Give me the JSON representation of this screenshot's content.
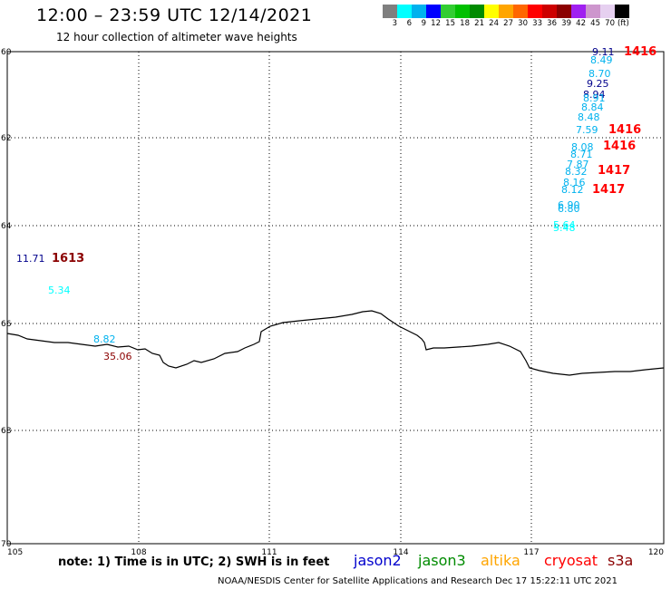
{
  "header": {
    "title": "12:00 – 23:59 UTC 12/14/2021",
    "subtitle": "12 hour collection of altimeter wave heights"
  },
  "colorbar": {
    "colors": [
      "#7f7f7f",
      "#00ffff",
      "#00b2ee",
      "#0000ff",
      "#32cd32",
      "#00c000",
      "#008b00",
      "#ffff00",
      "#ffa500",
      "#ff6600",
      "#ff0000",
      "#cd0000",
      "#8b0000",
      "#a020f0",
      "#cd96cd",
      "#e6d0f0",
      "#000000"
    ],
    "labels": [
      "3",
      "6",
      "9",
      "12",
      "15",
      "18",
      "21",
      "24",
      "27",
      "30",
      "33",
      "36",
      "39",
      "42",
      "45",
      "70"
    ],
    "unit": "(ft)"
  },
  "axes": {
    "lat_labels": [
      "60",
      "62",
      "64",
      "66",
      "68",
      "70"
    ],
    "lon_labels": [
      "105",
      "108",
      "111",
      "114",
      "117",
      "120"
    ]
  },
  "observations": [
    {
      "text": "9.11",
      "color": "#00008b"
    },
    {
      "text": "1416",
      "color": "#ff0000"
    },
    {
      "text": "8.49",
      "color": "#00b2ee"
    },
    {
      "text": "8.70",
      "color": "#00b2ee"
    },
    {
      "text": "9.25",
      "color": "#00008b"
    },
    {
      "text": "8.94",
      "color": "#00008b"
    },
    {
      "text": "8.91",
      "color": "#00b2ee"
    },
    {
      "text": "8.84",
      "color": "#00b2ee"
    },
    {
      "text": "8.48",
      "color": "#00b2ee"
    },
    {
      "text": "7.59",
      "color": "#00b2ee"
    },
    {
      "text": "1416",
      "color": "#ff0000"
    },
    {
      "text": "8.08",
      "color": "#00b2ee"
    },
    {
      "text": "1416",
      "color": "#ff0000"
    },
    {
      "text": "8.71",
      "color": "#00b2ee"
    },
    {
      "text": "7.87",
      "color": "#00b2ee"
    },
    {
      "text": "8.32",
      "color": "#00b2ee"
    },
    {
      "text": "1417",
      "color": "#ff0000"
    },
    {
      "text": "8.16",
      "color": "#00b2ee"
    },
    {
      "text": "8.12",
      "color": "#00b2ee"
    },
    {
      "text": "1417",
      "color": "#ff0000"
    },
    {
      "text": "6.90",
      "color": "#00b2ee"
    },
    {
      "text": "6.80",
      "color": "#00b2ee"
    },
    {
      "text": "5.64",
      "color": "#00ffff"
    },
    {
      "text": "5.48",
      "color": "#00ffff"
    },
    {
      "text": "11.71",
      "color": "#00008b"
    },
    {
      "text": "1613",
      "color": "#8b0000"
    },
    {
      "text": "5.34",
      "color": "#00ffff"
    },
    {
      "text": "8.82",
      "color": "#00b2ee"
    },
    {
      "text": "35.06",
      "color": "#8b0000"
    }
  ],
  "footer": {
    "note": "note: 1) Time is in UTC; 2) SWH is in feet",
    "legend": [
      {
        "text": "jason2",
        "color": "#0000cd"
      },
      {
        "text": "jason3",
        "color": "#008b00"
      },
      {
        "text": "altika",
        "color": "#ffa500"
      },
      {
        "text": "cryosat",
        "color": "#ff0000"
      },
      {
        "text": "s3a",
        "color": "#8b0000"
      }
    ],
    "credit": "NOAA/NESDIS Center for Satellite Applications and Research    Dec 17 15:22:11 UTC 2021"
  }
}
